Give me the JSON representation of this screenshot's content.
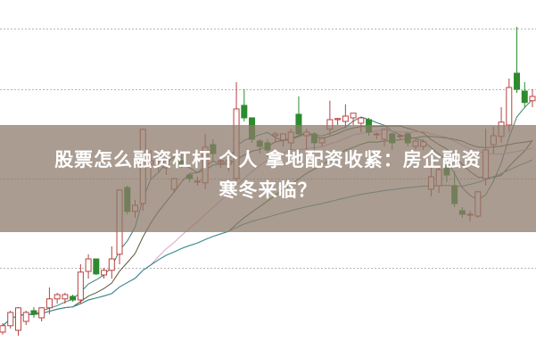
{
  "title": {
    "line1": "股票怎么融资杠杆 个人 拿地配资收紧：房企融资",
    "line2": "寒冬来临？"
  },
  "chart_data": {
    "type": "candlestick",
    "title": "",
    "xlabel": "",
    "ylabel": "",
    "ylim": [
      0,
      100
    ],
    "grid": true,
    "grid_levels": [
      25,
      50,
      75,
      92
    ],
    "colors": {
      "up": "#b8413f",
      "down": "#2e8a2e",
      "grid": "#b5b5b5",
      "ma": [
        "#3f7f72",
        "#5a5a3a",
        "#d8a3cf",
        "#3d6b2f",
        "#3c8fa0"
      ]
    },
    "ohlc": [
      [
        7,
        9.5,
        6.3,
        8.8
      ],
      [
        8.8,
        13,
        8,
        12.5
      ],
      [
        7.5,
        14,
        6,
        13.8
      ],
      [
        10,
        13,
        9,
        12.5
      ],
      [
        13,
        14,
        11,
        12
      ],
      [
        11,
        14,
        10,
        13.8
      ],
      [
        13.8,
        19.5,
        12,
        16.3
      ],
      [
        16.3,
        18,
        15,
        17.5
      ],
      [
        16.3,
        18,
        15,
        17.5
      ],
      [
        17,
        17.5,
        15.5,
        16
      ],
      [
        16,
        26,
        15,
        23.8
      ],
      [
        24,
        28.8,
        22,
        27.5
      ],
      [
        27.5,
        27.5,
        23,
        23.3
      ],
      [
        23,
        25,
        22,
        24.3
      ],
      [
        24.3,
        31,
        22,
        27.5
      ],
      [
        28.8,
        47,
        26,
        46.8
      ],
      [
        47.5,
        48,
        40,
        40.8
      ],
      [
        40.8,
        44,
        39,
        42.5
      ],
      [
        43,
        64,
        41,
        63.8
      ],
      [
        54,
        58,
        50,
        55
      ],
      [
        55,
        57,
        52,
        56.3
      ],
      [
        53,
        56,
        51,
        55
      ],
      [
        47,
        50,
        46,
        50
      ],
      [
        55,
        56.8,
        53,
        53.8
      ],
      [
        51,
        51,
        49,
        50
      ],
      [
        49,
        50.5,
        48,
        49.3
      ],
      [
        48.8,
        62.5,
        47,
        58.8
      ],
      [
        59.5,
        61,
        55,
        57
      ],
      [
        55,
        56,
        53,
        55
      ],
      [
        54,
        56,
        52,
        55
      ],
      [
        50,
        77,
        49,
        69.5
      ],
      [
        70.5,
        75,
        66,
        67
      ],
      [
        67,
        67,
        60,
        61
      ],
      [
        60.5,
        61,
        57,
        59
      ],
      [
        60,
        61,
        56,
        58
      ],
      [
        62,
        63,
        60,
        62.5
      ],
      [
        60.8,
        62.5,
        59,
        62.5
      ],
      [
        60,
        64,
        58,
        63
      ],
      [
        68,
        73,
        62,
        62.5
      ],
      [
        62,
        64,
        58,
        63
      ],
      [
        62.5,
        63,
        58,
        60
      ],
      [
        60,
        61.5,
        59,
        61.3
      ],
      [
        63.8,
        71.8,
        62,
        66.5
      ],
      [
        66.5,
        67,
        65,
        66.8
      ],
      [
        66,
        70.8,
        64,
        67.5
      ],
      [
        67,
        68,
        65,
        68.3
      ],
      [
        65.5,
        67,
        63,
        67
      ],
      [
        66.5,
        67,
        62,
        63
      ],
      [
        62.5,
        63,
        61,
        62.5
      ],
      [
        61,
        64,
        59,
        63.8
      ],
      [
        62.5,
        63,
        58,
        60
      ],
      [
        62,
        62.5,
        61,
        62
      ],
      [
        62.5,
        63,
        59,
        60
      ],
      [
        59,
        61,
        58,
        60.5
      ],
      [
        59,
        61,
        58,
        60.3
      ],
      [
        47,
        55,
        45,
        50.5
      ],
      [
        48,
        53,
        46,
        52.5
      ],
      [
        53.3,
        54,
        49,
        51
      ],
      [
        48,
        52,
        42,
        43
      ],
      [
        41,
        42,
        39,
        40
      ],
      [
        40,
        41,
        38,
        40
      ],
      [
        39.5,
        46.5,
        39,
        46.3
      ],
      [
        50,
        64,
        48,
        58
      ],
      [
        59.5,
        64.5,
        57,
        62
      ],
      [
        61.8,
        70,
        60,
        65.8
      ],
      [
        65,
        78,
        63,
        75.5
      ],
      [
        79.5,
        92.5,
        74,
        75
      ],
      [
        74.5,
        77,
        70,
        71.3
      ],
      [
        71.8,
        75,
        70,
        73
      ]
    ],
    "ma_periods": [
      5,
      10,
      20,
      30,
      60
    ]
  }
}
